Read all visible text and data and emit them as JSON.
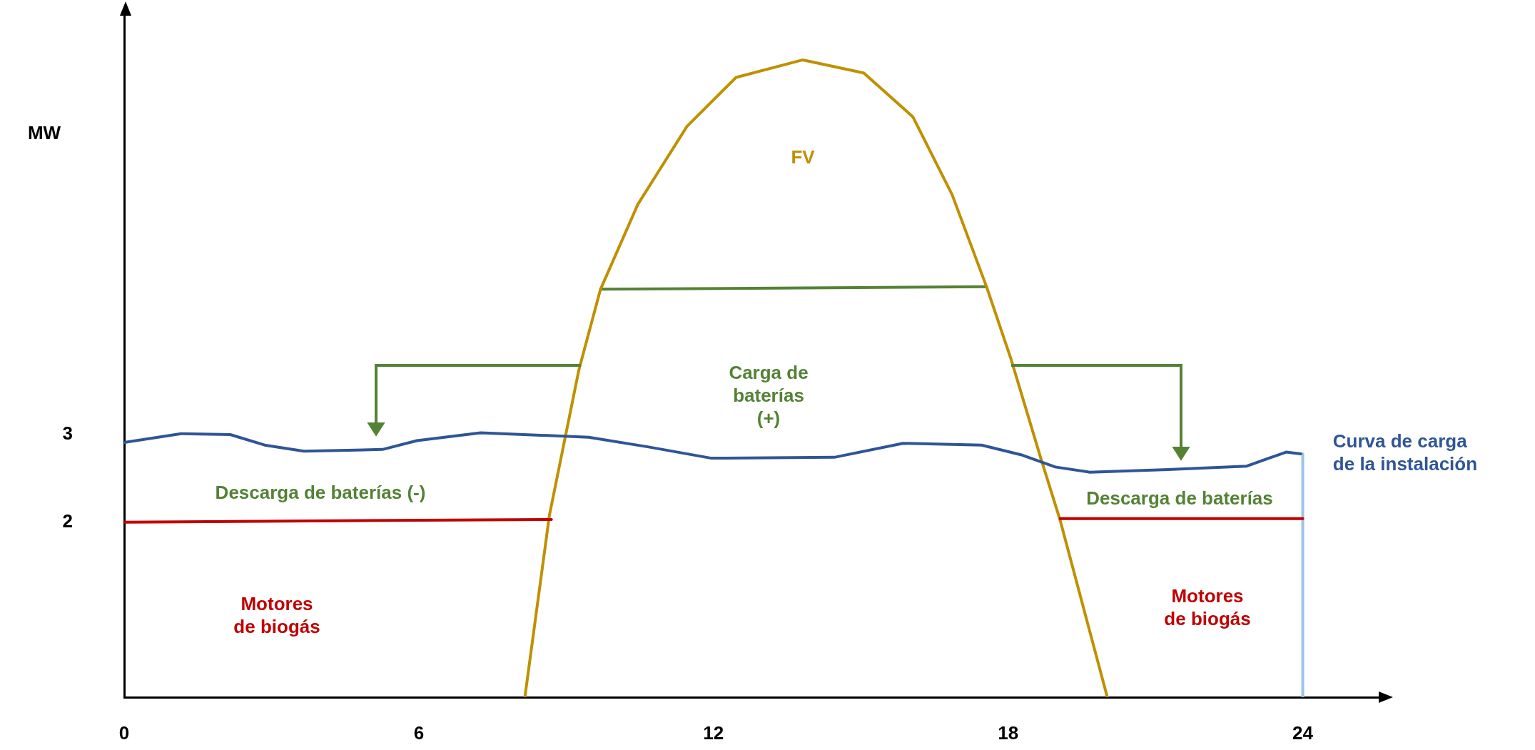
{
  "chart_data": {
    "type": "line",
    "ylabel": "MW",
    "xlim": [
      0,
      25.75
    ],
    "xticks": [
      0,
      6,
      12,
      18,
      24
    ],
    "ylim": [
      0,
      7.85
    ],
    "yticks": [
      2,
      3
    ],
    "grid": false,
    "legend": false,
    "marker": "none",
    "line_style": "solid",
    "series": [
      {
        "name": "Curva de carga de la instalación",
        "color": "#2f5597",
        "x": [
          0,
          1.16,
          2.16,
          2.86,
          3.66,
          5.26,
          5.96,
          7.26,
          9.46,
          10.66,
          11.96,
          14.46,
          15.86,
          17.46,
          18.26,
          18.96,
          19.66,
          21.26,
          22.86,
          23.66,
          23.96
        ],
        "values": [
          2.91,
          3.01,
          3.0,
          2.88,
          2.81,
          2.83,
          2.93,
          3.02,
          2.97,
          2.86,
          2.73,
          2.74,
          2.9,
          2.88,
          2.77,
          2.63,
          2.57,
          2.6,
          2.64,
          2.8,
          2.78
        ]
      },
      {
        "color": "#c00000",
        "x": [
          0,
          8.7
        ],
        "values": [
          2.0,
          2.03
        ]
      },
      {
        "color": "#c00000",
        "x": [
          19.06,
          24
        ],
        "values": [
          2.04,
          2.04
        ]
      },
      {
        "color": "#bf9000",
        "x": [
          8.16,
          8.66,
          9.26,
          9.7,
          10.46,
          11.46,
          12.46,
          13.82,
          15.06,
          16.06,
          16.86,
          17.56,
          18.06,
          18.66,
          19.06,
          20.02
        ],
        "values": [
          0,
          2.08,
          3.74,
          4.66,
          5.63,
          6.52,
          7.08,
          7.28,
          7.13,
          6.63,
          5.74,
          4.69,
          3.86,
          2.74,
          2.02,
          0
        ]
      },
      {
        "color": "#548235",
        "x": [
          9.7,
          17.56
        ],
        "values": [
          4.66,
          4.69
        ]
      },
      {
        "color": "#9dc3e6",
        "x": [
          24,
          24
        ],
        "values": [
          0,
          2.78
        ]
      }
    ],
    "annotations": [
      "FV",
      "Carga de\nbaterías\n(+)",
      "Descarga de baterías (-)",
      "Descarga de baterías",
      "Motores\nde biogás",
      "Motores\nde biogás"
    ]
  }
}
